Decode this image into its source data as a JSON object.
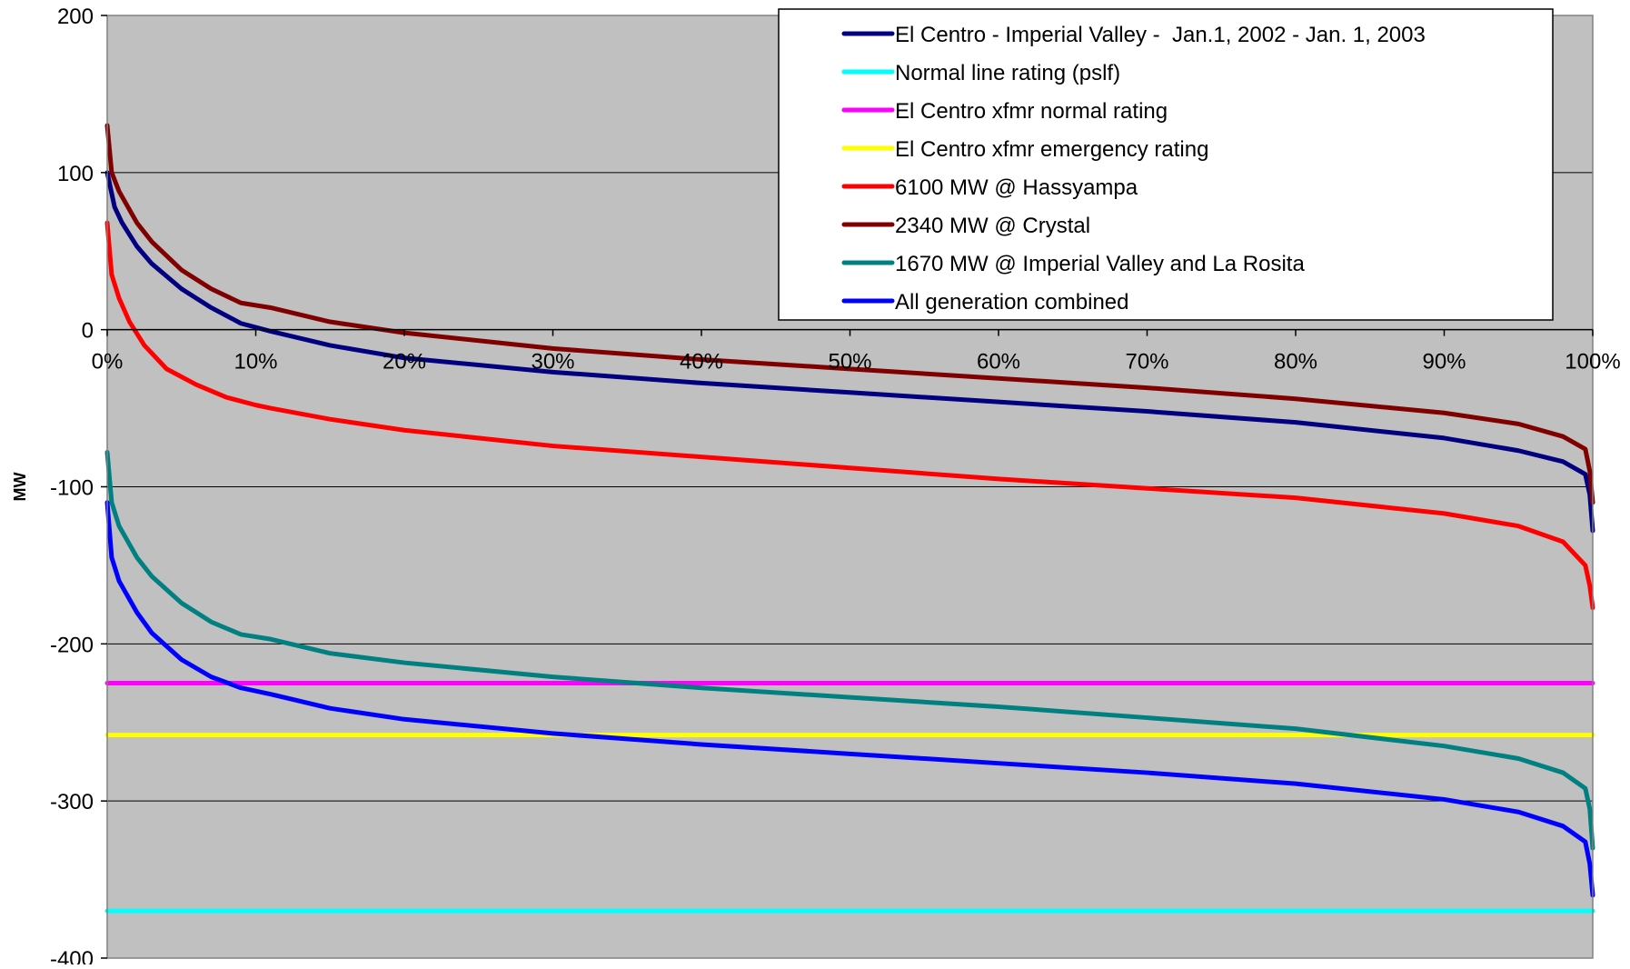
{
  "chart_data": {
    "type": "line",
    "title": "",
    "xlabel": "",
    "ylabel": "MW",
    "xlim": [
      0,
      100
    ],
    "ylim": [
      -400,
      200
    ],
    "grid": "horizontal",
    "legend_position": "top-right",
    "background_color": "#c0c0c0",
    "x_ticks": [
      "0%",
      "10%",
      "20%",
      "30%",
      "40%",
      "50%",
      "60%",
      "70%",
      "80%",
      "90%",
      "100%"
    ],
    "y_ticks": [
      "200",
      "100",
      "0",
      "-100",
      "-200",
      "-300",
      "-400"
    ],
    "y_tick_values": [
      200,
      100,
      0,
      -100,
      -200,
      -300,
      -400
    ],
    "series": [
      {
        "name": "El Centro - Imperial Valley -  Jan.1, 2002 - Jan. 1, 2003",
        "color": "#000080",
        "x": [
          0,
          0.5,
          1,
          2,
          3,
          5,
          7,
          9,
          11,
          15,
          20,
          30,
          40,
          50,
          60,
          70,
          80,
          90,
          95,
          98,
          99.5,
          99.8,
          100
        ],
        "y": [
          100,
          78,
          68,
          53,
          42,
          26,
          14,
          4,
          -1,
          -10,
          -18,
          -27,
          -34,
          -40,
          -46,
          -52,
          -59,
          -69,
          -77,
          -84,
          -92,
          -105,
          -128
        ]
      },
      {
        "name": "Normal line rating (pslf)",
        "color": "#00ffff",
        "x": [
          0,
          100
        ],
        "y": [
          -370,
          -370
        ]
      },
      {
        "name": "El Centro xfmr normal rating",
        "color": "#ff00ff",
        "x": [
          0,
          100
        ],
        "y": [
          -225,
          -225
        ]
      },
      {
        "name": "El Centro xfmr emergency rating",
        "color": "#ffff00",
        "x": [
          0,
          100
        ],
        "y": [
          -258,
          -258
        ]
      },
      {
        "name": "6100 MW @ Hassyampa",
        "color": "#ff0000",
        "x": [
          0,
          0.3,
          0.8,
          1.5,
          2.5,
          4,
          6,
          8,
          10,
          11,
          15,
          20,
          30,
          40,
          50,
          60,
          70,
          80,
          90,
          95,
          98,
          99.5,
          99.8,
          100
        ],
        "y": [
          68,
          35,
          20,
          5,
          -10,
          -25,
          -35,
          -43,
          -48,
          -50,
          -57,
          -64,
          -74,
          -81,
          -88,
          -95,
          -101,
          -107,
          -117,
          -125,
          -135,
          -150,
          -163,
          -177
        ]
      },
      {
        "name": "2340 MW @ Crystal",
        "color": "#800000",
        "x": [
          0,
          0.3,
          0.8,
          2,
          3,
          5,
          7,
          9,
          11,
          15,
          20,
          30,
          40,
          50,
          60,
          70,
          80,
          90,
          95,
          98,
          99.5,
          99.8,
          100
        ],
        "y": [
          130,
          100,
          88,
          68,
          56,
          38,
          26,
          17,
          14,
          5,
          -2,
          -12,
          -19,
          -25,
          -31,
          -37,
          -44,
          -53,
          -60,
          -68,
          -76,
          -90,
          -110
        ]
      },
      {
        "name": "1670 MW @ Imperial Valley and La Rosita",
        "color": "#008080",
        "x": [
          0,
          0.3,
          0.8,
          2,
          3,
          5,
          7,
          9,
          11,
          15,
          20,
          30,
          40,
          50,
          60,
          70,
          80,
          90,
          95,
          98,
          99.5,
          99.8,
          100
        ],
        "y": [
          -78,
          -110,
          -125,
          -145,
          -157,
          -174,
          -186,
          -194,
          -197,
          -206,
          -212,
          -221,
          -228,
          -234,
          -240,
          -247,
          -254,
          -265,
          -273,
          -282,
          -292,
          -305,
          -330
        ]
      },
      {
        "name": "All generation combined",
        "color": "#0000ff",
        "x": [
          0,
          0.3,
          0.8,
          2,
          3,
          5,
          7,
          9,
          11,
          15,
          20,
          30,
          40,
          50,
          60,
          70,
          80,
          90,
          95,
          98,
          99.5,
          99.8,
          100
        ],
        "y": [
          -110,
          -145,
          -160,
          -180,
          -193,
          -210,
          -221,
          -228,
          -232,
          -241,
          -248,
          -257,
          -264,
          -270,
          -276,
          -282,
          -289,
          -299,
          -307,
          -316,
          -326,
          -340,
          -360
        ]
      }
    ]
  }
}
